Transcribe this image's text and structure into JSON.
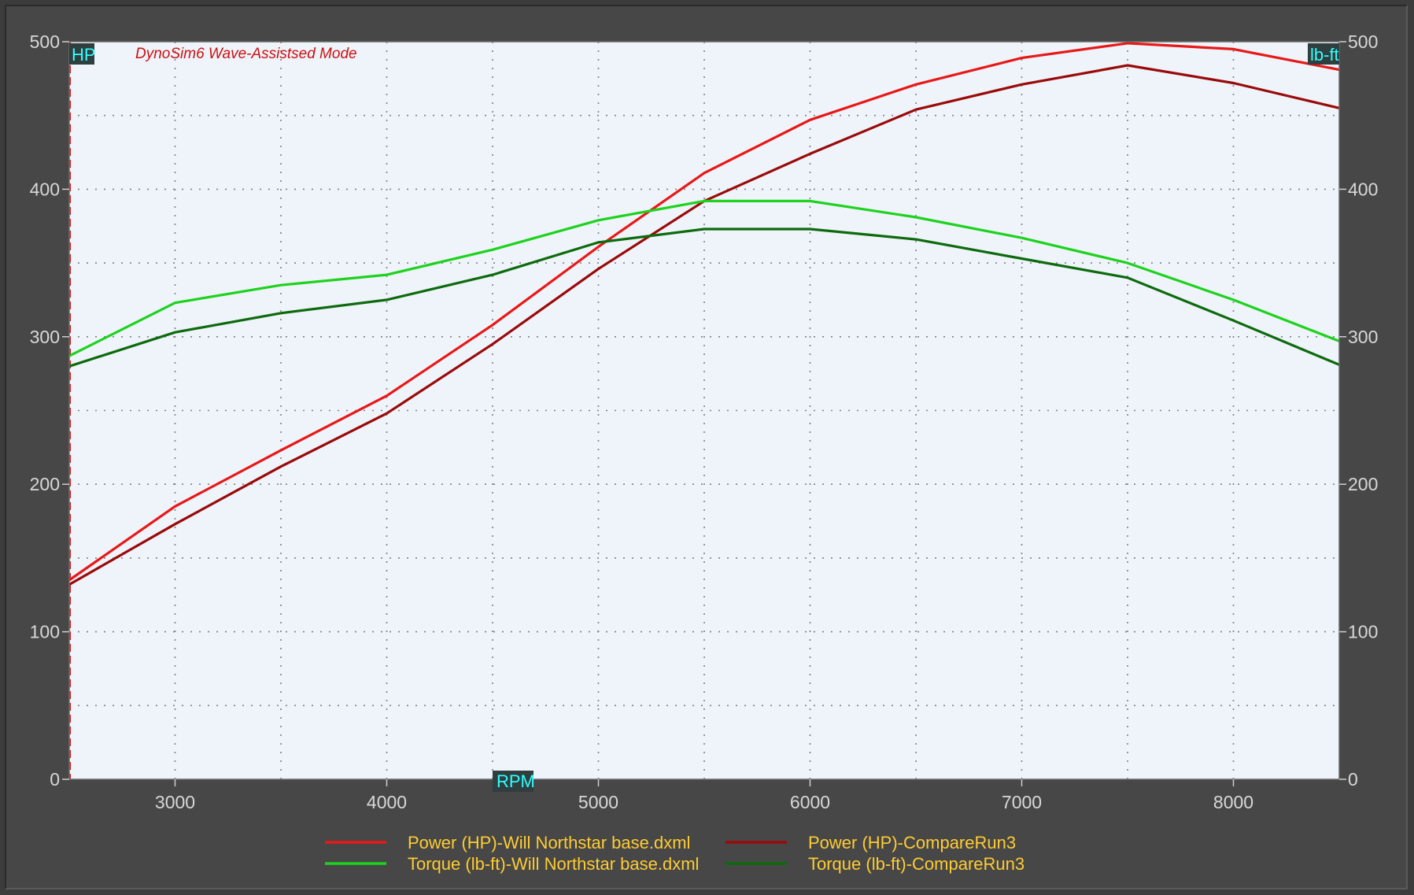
{
  "chart_data": {
    "type": "line",
    "title": "DynoSim6 Wave-Assistsed Mode",
    "x_axis_tag": "RPM",
    "left_axis_tag": "HP",
    "right_axis_tag": "lb-ft",
    "xlim": [
      2500,
      8500
    ],
    "ylim": [
      0,
      500
    ],
    "x_ticks": [
      3000,
      4000,
      5000,
      6000,
      7000,
      8000
    ],
    "x_tick_labels": [
      "3000",
      "4000",
      "5000",
      "6000",
      "7000",
      "8000"
    ],
    "y_ticks": [
      0,
      100,
      200,
      300,
      400,
      500
    ],
    "y_tick_labels": [
      "0",
      "100",
      "200",
      "300",
      "400",
      "500"
    ],
    "grid": true,
    "legend_position": "bottom",
    "x": [
      2500,
      3000,
      3500,
      4000,
      4500,
      5000,
      5500,
      6000,
      6500,
      7000,
      7500,
      8000,
      8500
    ],
    "series": [
      {
        "name": "Power (HP)-Will Northstar base.dxml",
        "color": "#e81818",
        "values": [
          135,
          185,
          223,
          260,
          308,
          361,
          411,
          447,
          471,
          489,
          499,
          495,
          481
        ]
      },
      {
        "name": "Power (HP)-CompareRun3",
        "color": "#9a0a0a",
        "values": [
          132,
          173,
          212,
          248,
          295,
          346,
          392,
          424,
          454,
          471,
          484,
          472,
          455
        ]
      },
      {
        "name": "Torque (lb-ft)-Will Northstar base.dxml",
        "color": "#1ed21e",
        "values": [
          287,
          323,
          335,
          342,
          359,
          379,
          392,
          392,
          381,
          367,
          350,
          325,
          297
        ]
      },
      {
        "name": "Torque (lb-ft)-CompareRun3",
        "color": "#0d6a0d",
        "values": [
          280,
          303,
          316,
          325,
          342,
          364,
          373,
          373,
          366,
          353,
          340,
          311,
          281
        ]
      }
    ],
    "legend": [
      {
        "label": "Power (HP)-Will Northstar base.dxml",
        "color": "#e81818"
      },
      {
        "label": "Power (HP)-CompareRun3",
        "color": "#9a0a0a"
      },
      {
        "label": "Torque (lb-ft)-Will Northstar base.dxml",
        "color": "#1ed21e"
      },
      {
        "label": "Torque (lb-ft)-CompareRun3",
        "color": "#0d6a0d"
      }
    ],
    "colors": {
      "plot_background": "#eef4fa",
      "panel_background": "#474747",
      "grid": "#808080",
      "tick_text": "#d8d8d8",
      "tag_text": "#33ffff",
      "tag_background": "#2f3f3f",
      "title_text": "#cc1010",
      "legend_text": "#ffcc33"
    }
  }
}
